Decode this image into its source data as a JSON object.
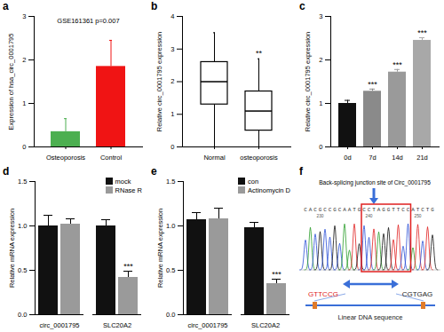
{
  "chart_data": [
    {
      "type": "bar",
      "panel_label": "a",
      "annotation": "GSE161361 p=0.007",
      "categories": [
        "Osteoporosis",
        "Control"
      ],
      "values": [
        0.35,
        1.85
      ],
      "errors": [
        0.3,
        0.6
      ],
      "colors": [
        "#4caf50",
        "#f01414"
      ],
      "y_label": "Expression of hsa_circ_0001795",
      "ylim": [
        0,
        3
      ],
      "yticks": [
        0,
        1,
        2,
        3
      ]
    },
    {
      "type": "box",
      "panel_label": "b",
      "categories": [
        "Normal",
        "osteoporosis"
      ],
      "boxes": [
        {
          "min": 0,
          "q1": 1.3,
          "median": 2.0,
          "q3": 2.6,
          "max": 3.5
        },
        {
          "min": 0,
          "q1": 0.5,
          "median": 1.1,
          "q3": 1.7,
          "max": 2.7
        }
      ],
      "annotations": [
        {
          "category": "osteoporosis",
          "text": "**"
        }
      ],
      "y_label": "Relative circ_0001795 expression",
      "ylim": [
        0,
        4
      ],
      "yticks": [
        0,
        1,
        2,
        3,
        4
      ]
    },
    {
      "type": "bar",
      "panel_label": "c",
      "categories": [
        "0d",
        "7d",
        "14d",
        "21d"
      ],
      "values": [
        1.0,
        1.28,
        1.72,
        2.45
      ],
      "errors": [
        0.07,
        0.05,
        0.06,
        0.06
      ],
      "colors": [
        "#111111",
        "#8a8a8a",
        "#9a9a9a",
        "#a8a8a8"
      ],
      "annotations": [
        {
          "category": "7d",
          "text": "***"
        },
        {
          "category": "14d",
          "text": "***"
        },
        {
          "category": "21d",
          "text": "***"
        }
      ],
      "y_label": "Relative circ_0001795 expression",
      "ylim": [
        0,
        3
      ],
      "yticks": [
        0,
        1,
        2,
        3
      ]
    },
    {
      "type": "bar",
      "panel_label": "d",
      "legend": "top-right",
      "categories": [
        "circ_0001795",
        "SLC20A2"
      ],
      "series": [
        {
          "name": "mock",
          "color": "#111111",
          "values": [
            1.0,
            1.0
          ],
          "errors": [
            0.12,
            0.07
          ]
        },
        {
          "name": "RNase R",
          "color": "#9a9a9a",
          "values": [
            1.02,
            0.42
          ],
          "errors": [
            0.06,
            0.07
          ]
        }
      ],
      "annotations": [
        {
          "category": "SLC20A2",
          "series": "RNase R",
          "text": "***"
        }
      ],
      "y_label": "Relative mRNA expression",
      "ylim": [
        0,
        1.5
      ],
      "yticks": [
        {
          "value": 0,
          "label": "0.0"
        },
        {
          "value": 0.5,
          "label": "0.5"
        },
        {
          "value": 1,
          "label": "1.0"
        },
        {
          "value": 1.5,
          "label": "1.5"
        }
      ]
    },
    {
      "type": "bar",
      "panel_label": "e",
      "legend": "top-right",
      "categories": [
        "circ_0001795",
        "SLC20A2"
      ],
      "series": [
        {
          "name": "con",
          "color": "#111111",
          "values": [
            1.07,
            0.98
          ],
          "errors": [
            0.08,
            0.06
          ]
        },
        {
          "name": "Actinomycin D",
          "color": "#9a9a9a",
          "values": [
            1.08,
            0.35
          ],
          "errors": [
            0.12,
            0.05
          ]
        }
      ],
      "annotations": [
        {
          "category": "SLC20A2",
          "series": "Actinomycin D",
          "text": "***"
        }
      ],
      "y_label": "Relative mRNA expression",
      "ylim": [
        0,
        1.5
      ],
      "yticks": [
        {
          "value": 0,
          "label": "0.0"
        },
        {
          "value": 0.5,
          "label": "0.5"
        },
        {
          "value": 1,
          "label": "1.0"
        },
        {
          "value": 1.5,
          "label": "1.5"
        }
      ]
    }
  ],
  "panel_f": {
    "panel_label": "f",
    "title": "Back-splicing junction site of Circ_0001795",
    "sequence": "CACGCCGCAATGCCTAGGTTCCATCTG",
    "positions": [
      230,
      240,
      250
    ],
    "left_sequence": "GTTCCG",
    "right_sequence": "CGTGAG",
    "caption": "Linear DNA sequence"
  }
}
